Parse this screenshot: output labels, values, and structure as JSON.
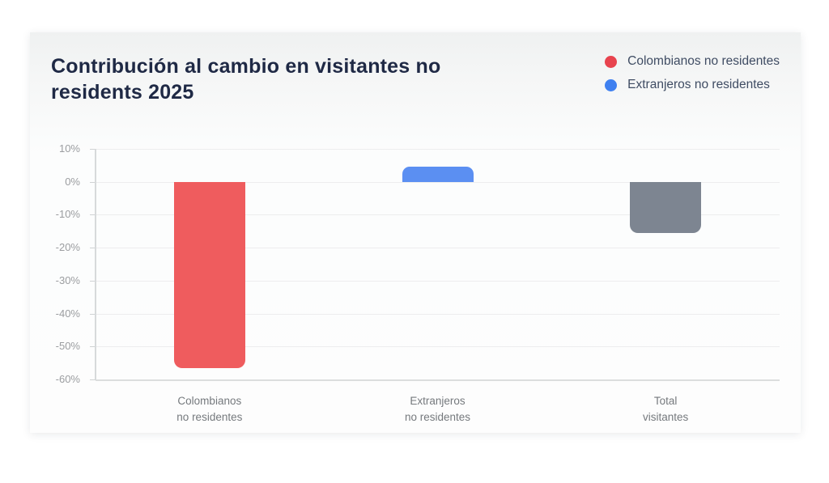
{
  "header": {
    "title": "Contribución al cambio en visitantes no residents 2025"
  },
  "legend": {
    "items": [
      {
        "label": "Colombianos no residentes",
        "color": "#e8434e"
      },
      {
        "label": "Extranjeros no residentes",
        "color": "#3f80f0"
      }
    ]
  },
  "chart_data": {
    "type": "bar",
    "title": "Contribución al cambio en visitantes no residents 2025",
    "categories": [
      "Colombianos no residentes",
      "Extranjeros no residentes",
      "Total visitantes"
    ],
    "category_lines": [
      [
        "Colombianos",
        "no residentes"
      ],
      [
        "Extranjeros",
        "no residentes"
      ],
      [
        "Total",
        "visitantes"
      ]
    ],
    "values": [
      -56.5,
      4.7,
      -15.6
    ],
    "bar_colors": [
      "#ef5c5e",
      "#5b8ff2",
      "#7d8591"
    ],
    "unit": "%",
    "ylim": [
      -60,
      10
    ],
    "ytick_step": 10,
    "ytick_labels": [
      "10%",
      "0%",
      "-10%",
      "-20%",
      "-30%",
      "-40%",
      "-50%",
      "-60%"
    ],
    "grid": true,
    "legend_position": "top-right",
    "legend": [
      "Colombianos no residentes",
      "Extranjeros no residentes"
    ],
    "xlabel": "",
    "ylabel": ""
  },
  "colors": {
    "title_text": "#1f2945",
    "legend_text": "#3f4c63",
    "axis_text": "#9b9da0",
    "xlabel_text": "#75797d",
    "gridline": "#ededee",
    "card_top_tint": "#eff1f1"
  }
}
